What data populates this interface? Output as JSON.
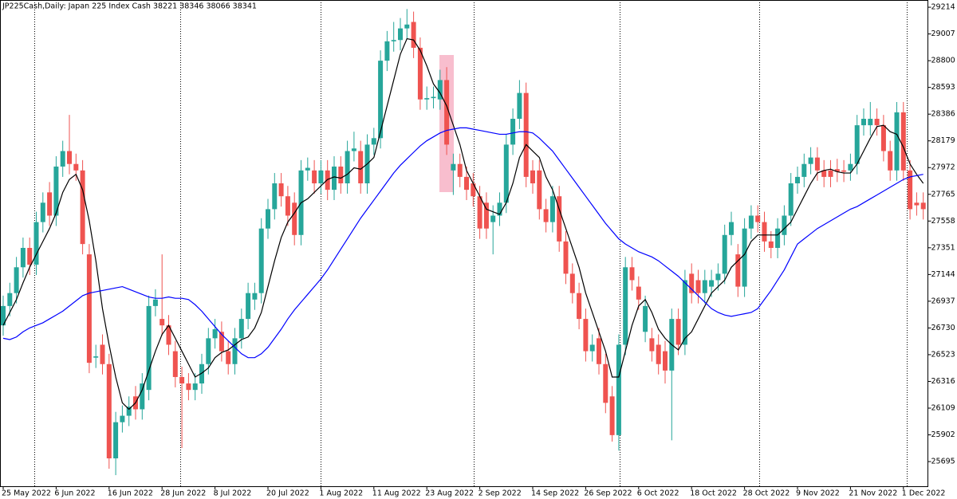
{
  "chart_data": {
    "type": "candlestick",
    "title": "JP225Cash,Daily:  Japan 225 Index Cash  38221 38346 38066 38341",
    "categories": [
      "25 May 2022",
      null,
      null,
      null,
      null,
      null,
      null,
      null,
      "6 Jun 2022",
      null,
      null,
      null,
      null,
      null,
      null,
      null,
      "16 Jun 2022",
      null,
      null,
      null,
      null,
      null,
      null,
      null,
      "28 Jun 2022",
      null,
      null,
      null,
      null,
      null,
      null,
      null,
      "8 Jul 2022",
      null,
      null,
      null,
      null,
      null,
      null,
      null,
      "20 Jul 2022",
      null,
      null,
      null,
      null,
      null,
      null,
      null,
      "1 Aug 2022",
      null,
      null,
      null,
      null,
      null,
      null,
      null,
      "11 Aug 2022",
      null,
      null,
      null,
      null,
      null,
      null,
      null,
      "23 Aug 2022",
      null,
      null,
      null,
      null,
      null,
      null,
      null,
      "2 Sep 2022",
      null,
      null,
      null,
      null,
      null,
      null,
      null,
      "14 Sep 2022",
      null,
      null,
      null,
      null,
      null,
      null,
      null,
      "26 Sep 2022",
      null,
      null,
      null,
      null,
      null,
      null,
      null,
      "6 Oct 2022",
      null,
      null,
      null,
      null,
      null,
      null,
      null,
      "18 Oct 2022",
      null,
      null,
      null,
      null,
      null,
      null,
      null,
      "28 Oct 2022",
      null,
      null,
      null,
      null,
      null,
      null,
      null,
      "9 Nov 2022",
      null,
      null,
      null,
      null,
      null,
      null,
      null,
      "21 Nov 2022",
      null,
      null,
      null,
      null,
      null,
      null,
      null,
      "1 Dec 2022",
      null,
      null,
      null
    ],
    "open": [
      26750,
      26900,
      27000,
      27200,
      27350,
      27220,
      27550,
      27780,
      27600,
      27980,
      28100,
      28000,
      27950,
      27300,
      26500,
      26600,
      26450,
      25720,
      26000,
      26050,
      26200,
      26100,
      26250,
      26900,
      26800,
      26750,
      26550,
      26350,
      26300,
      26250,
      26300,
      26450,
      26650,
      26700,
      26550,
      26450,
      26650,
      26800,
      26950,
      27000,
      27500,
      27650,
      27850,
      27750,
      27700,
      27450,
      27950,
      27950,
      27850,
      27950,
      27800,
      27980,
      27850,
      28100,
      28100,
      27850,
      28150,
      28200,
      28800,
      28950,
      28960,
      29050,
      29100,
      28900,
      28500,
      28510,
      28500,
      28650,
      27950,
      28000,
      27900,
      27850,
      27750,
      27700,
      27550,
      27600,
      27700,
      28150,
      28350,
      28550,
      27950,
      27950,
      27650,
      27550,
      27750,
      27400,
      27150,
      27000,
      26800,
      26550,
      26650,
      26450,
      26200,
      25900,
      26600,
      27200,
      27050,
      26700,
      26650,
      26600,
      26550,
      26400,
      26800,
      26600,
      27150,
      27100,
      27000,
      27050,
      27100,
      27150,
      27450,
      27300,
      27050,
      27500,
      27600,
      27550,
      27400,
      27350,
      27450,
      27600,
      27850,
      27900,
      28000,
      28050,
      27950,
      27950,
      27960,
      27950,
      27950,
      28000,
      28300,
      28300,
      28350,
      28300,
      28100,
      27950,
      28400,
      27950,
      27700,
      27700
    ],
    "high": [
      26980,
      27080,
      27280,
      27430,
      27430,
      27630,
      27780,
      27860,
      28060,
      28180,
      28380,
      28080,
      28030,
      27380,
      26600,
      26680,
      26530,
      26080,
      26130,
      26200,
      26280,
      26380,
      26980,
      27030,
      27300,
      26830,
      26630,
      26430,
      26380,
      26380,
      26530,
      26730,
      26800,
      26780,
      26630,
      26730,
      26880,
      27080,
      27080,
      27580,
      27730,
      27930,
      27930,
      27830,
      27780,
      28030,
      28050,
      28030,
      28030,
      28030,
      28060,
      28060,
      28180,
      28250,
      28180,
      28230,
      28280,
      28880,
      29030,
      29100,
      29130,
      29200,
      29180,
      28980,
      28600,
      28600,
      28730,
      28750,
      28080,
      28080,
      27980,
      27930,
      27830,
      27780,
      27680,
      27780,
      28230,
      28430,
      28650,
      28630,
      28030,
      28030,
      27730,
      27830,
      27830,
      27480,
      27230,
      27080,
      26880,
      26680,
      26730,
      26530,
      26280,
      26680,
      27280,
      27280,
      27130,
      26980,
      26730,
      26680,
      26630,
      26880,
      26880,
      27180,
      27230,
      27180,
      27180,
      27180,
      27230,
      27530,
      27630,
      27380,
      27580,
      27680,
      27680,
      27630,
      27480,
      27580,
      27680,
      27930,
      27980,
      28080,
      28130,
      28130,
      28030,
      28030,
      28040,
      28030,
      28080,
      28380,
      28430,
      28480,
      28430,
      28380,
      28180,
      28480,
      28480,
      28030,
      27780,
      27780
    ],
    "low": [
      26670,
      26820,
      26920,
      27120,
      27140,
      27140,
      27470,
      27520,
      27520,
      27900,
      27920,
      27870,
      27300,
      26380,
      26420,
      26370,
      25640,
      25590,
      25920,
      25970,
      26020,
      26020,
      26170,
      26820,
      26670,
      26520,
      26270,
      25800,
      26170,
      26170,
      26220,
      26370,
      26570,
      26470,
      26370,
      26370,
      26570,
      26720,
      26870,
      26920,
      27420,
      27570,
      27670,
      27520,
      27370,
      27370,
      27870,
      27770,
      27770,
      27720,
      27720,
      27770,
      27770,
      28020,
      27770,
      27770,
      28070,
      28120,
      28720,
      28870,
      28880,
      28970,
      28820,
      28420,
      28420,
      28430,
      28420,
      28070,
      27760,
      27820,
      27720,
      27670,
      27420,
      27420,
      27300,
      27520,
      27620,
      28070,
      28270,
      27820,
      27770,
      27570,
      27470,
      27470,
      27320,
      27070,
      26920,
      26720,
      26470,
      26470,
      26370,
      26070,
      25850,
      25780,
      26520,
      27020,
      26870,
      26620,
      26470,
      26370,
      26300,
      25860,
      26520,
      26520,
      26920,
      26920,
      26920,
      26970,
      27020,
      27070,
      27370,
      26970,
      26970,
      27420,
      27470,
      27320,
      27270,
      27270,
      27370,
      27520,
      27770,
      27820,
      27920,
      27870,
      27820,
      27820,
      27860,
      27860,
      27870,
      27920,
      28220,
      28220,
      28220,
      28020,
      27870,
      27870,
      27870,
      27570,
      27600,
      27570
    ],
    "close": [
      26900,
      27000,
      27200,
      27350,
      27220,
      27550,
      27700,
      27600,
      27980,
      28100,
      28000,
      27950,
      27380,
      26460,
      26510,
      26450,
      25720,
      26000,
      26050,
      26120,
      26100,
      26300,
      26900,
      26950,
      26750,
      26600,
      26350,
      26300,
      26250,
      26300,
      26450,
      26650,
      26720,
      26550,
      26450,
      26650,
      26800,
      27000,
      27000,
      27500,
      27650,
      27850,
      27750,
      27600,
      27450,
      27950,
      27970,
      27850,
      27950,
      27800,
      27980,
      27850,
      28100,
      28120,
      27850,
      28150,
      28200,
      28800,
      28950,
      28960,
      29050,
      29080,
      28900,
      28500,
      28510,
      28520,
      28650,
      28150,
      28000,
      27900,
      27800,
      27750,
      27500,
      27500,
      27600,
      27700,
      28150,
      28350,
      28550,
      27900,
      27850,
      27650,
      27550,
      27750,
      27400,
      27150,
      27000,
      26800,
      26550,
      26600,
      26450,
      26150,
      25900,
      26600,
      27200,
      27100,
      26950,
      26900,
      26550,
      26450,
      26400,
      26800,
      26600,
      27100,
      27000,
      27000,
      27100,
      27100,
      27150,
      27450,
      27550,
      27050,
      27500,
      27600,
      27550,
      27400,
      27350,
      27500,
      27600,
      27850,
      27900,
      28000,
      28050,
      27950,
      27900,
      27900,
      27940,
      27940,
      28000,
      28300,
      28350,
      28350,
      28300,
      28100,
      27950,
      28400,
      27950,
      27650,
      27680,
      27650
    ],
    "up_color": "#26a69a",
    "down_color": "#ef5350",
    "series": [
      {
        "color": "#000000",
        "values": [
          26750,
          26850,
          26950,
          27080,
          27200,
          27300,
          27400,
          27500,
          27620,
          27780,
          27880,
          27920,
          27800,
          27560,
          27250,
          26880,
          26600,
          26350,
          26150,
          26100,
          26150,
          26250,
          26400,
          26550,
          26680,
          26750,
          26650,
          26550,
          26450,
          26350,
          26380,
          26420,
          26500,
          26540,
          26560,
          26600,
          26640,
          26660,
          26730,
          26850,
          27050,
          27250,
          27430,
          27550,
          27620,
          27700,
          27730,
          27780,
          27830,
          27880,
          27900,
          27890,
          27920,
          27970,
          27960,
          28000,
          28050,
          28250,
          28450,
          28650,
          28850,
          28970,
          28960,
          28880,
          28760,
          28620,
          28550,
          28450,
          28300,
          28150,
          27950,
          27850,
          27750,
          27650,
          27630,
          27610,
          27700,
          27850,
          28050,
          28150,
          28100,
          28050,
          27900,
          27800,
          27650,
          27500,
          27350,
          27200,
          27000,
          26850,
          26700,
          26550,
          26350,
          26350,
          26550,
          26750,
          26900,
          26950,
          26850,
          26720,
          26650,
          26600,
          26560,
          26650,
          26700,
          26800,
          26900,
          27000,
          27050,
          27100,
          27200,
          27250,
          27300,
          27400,
          27450,
          27450,
          27450,
          27450,
          27500,
          27550,
          27650,
          27750,
          27850,
          27930,
          27950,
          27960,
          27940,
          27930,
          27930,
          28000,
          28100,
          28200,
          28290,
          28300,
          28250,
          28230,
          28130,
          28000,
          27920,
          27850
        ]
      },
      {
        "color": "#0000ff",
        "values": [
          26650,
          26640,
          26660,
          26700,
          26730,
          26750,
          26770,
          26800,
          26830,
          26860,
          26900,
          26940,
          26980,
          27000,
          27010,
          27020,
          27030,
          27040,
          27050,
          27030,
          27010,
          26990,
          26970,
          26960,
          26960,
          26970,
          26960,
          26960,
          26950,
          26910,
          26860,
          26800,
          26740,
          26680,
          26630,
          26580,
          26530,
          26500,
          26500,
          26530,
          26580,
          26650,
          26720,
          26800,
          26870,
          26930,
          26990,
          27050,
          27110,
          27180,
          27260,
          27340,
          27420,
          27500,
          27580,
          27650,
          27720,
          27790,
          27860,
          27930,
          27990,
          28040,
          28090,
          28140,
          28180,
          28210,
          28240,
          28260,
          28270,
          28280,
          28280,
          28270,
          28260,
          28250,
          28240,
          28230,
          28230,
          28240,
          28250,
          28250,
          28240,
          28200,
          28150,
          28100,
          28030,
          27960,
          27890,
          27820,
          27750,
          27680,
          27610,
          27540,
          27480,
          27420,
          27380,
          27350,
          27320,
          27300,
          27280,
          27250,
          27210,
          27170,
          27130,
          27080,
          27030,
          26980,
          26930,
          26880,
          26850,
          26830,
          26820,
          26830,
          26840,
          26850,
          26880,
          26950,
          27020,
          27100,
          27180,
          27280,
          27380,
          27420,
          27460,
          27500,
          27530,
          27560,
          27590,
          27620,
          27650,
          27670,
          27700,
          27730,
          27760,
          27790,
          27820,
          27850,
          27880,
          27900,
          27910,
          27920
        ]
      }
    ],
    "ylim": [
      25504,
      29270
    ],
    "yticks": [
      29214,
      29007,
      28800,
      28593,
      28386,
      28179,
      27972,
      27765,
      27558,
      27351,
      27144,
      26937,
      26730,
      26523,
      26316,
      26109,
      25902,
      25695
    ]
  }
}
